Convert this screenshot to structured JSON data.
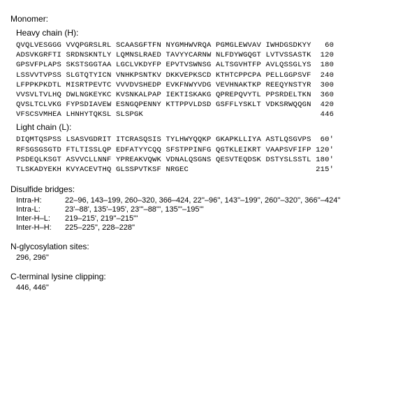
{
  "monomer_label": "Monomer:",
  "heavy_label": "Heavy chain (H):",
  "light_label": "Light chain (L):",
  "heavy_chain": {
    "font_family": "Courier New",
    "font_size_pt": 10.5,
    "groups_per_line": 6,
    "group_len": 10,
    "lines": [
      {
        "groups": [
          "QVQLVESGGG",
          "VVQPGRSLRL",
          "SCAASGFTFN",
          "NYGMHWVRQA",
          "PGMGLEWVAV",
          "IWHDGSDKYY"
        ],
        "end": "60"
      },
      {
        "groups": [
          "ADSVKGRFTI",
          "SRDNSKNTLY",
          "LQMNSLRAED",
          "TAVYYCARNW",
          "NLFDYWGQGT",
          "LVTVSSASTK"
        ],
        "end": "120"
      },
      {
        "groups": [
          "GPSVFPLAPS",
          "SKSTSGGTAA",
          "LGCLVKDYFP",
          "EPVTVSWNSG",
          "ALTSGVHTFP",
          "AVLQSSGLYS"
        ],
        "end": "180"
      },
      {
        "groups": [
          "LSSVVTVPSS",
          "SLGTQTYICN",
          "VNHKPSNTKV",
          "DKKVEPKSCD",
          "KTHTCPPCPA",
          "PELLGGPSVF"
        ],
        "end": "240"
      },
      {
        "groups": [
          "LFPPKPKDTL",
          "MISRTPEVTC",
          "VVVDVSHEDP",
          "EVKFNWYVDG",
          "VEVHNAKTKP",
          "REEQYNSTYR"
        ],
        "end": "300"
      },
      {
        "groups": [
          "VVSVLTVLHQ",
          "DWLNGKEYKC",
          "KVSNKALPAP",
          "IEKTISKAKG",
          "QPREPQVYTL",
          "PPSRDELTKN"
        ],
        "end": "360"
      },
      {
        "groups": [
          "QVSLTCLVKG",
          "FYPSDIAVEW",
          "ESNGQPENNY",
          "KTTPPVLDSD",
          "GSFFLYSKLT",
          "VDKSRWQQGN"
        ],
        "end": "420"
      },
      {
        "groups": [
          "VFSCSVMHEA",
          "LHNHYTQKSL",
          "SLSPGK",
          "",
          "",
          ""
        ],
        "end": "446"
      }
    ]
  },
  "light_chain": {
    "font_family": "Courier New",
    "font_size_pt": 10.5,
    "groups_per_line": 6,
    "group_len": 10,
    "lines": [
      {
        "groups": [
          "DIQMTQSPSS",
          "LSASVGDRIT",
          "ITCRASQSIS",
          "TYLHWYQQKP",
          "GKAPKLLIYA",
          "ASTLQSGVPS"
        ],
        "end": "60'"
      },
      {
        "groups": [
          "RFSGSGSGTD",
          "FTLTISSLQP",
          "EDFATYYCQQ",
          "SFSTPPINFG",
          "QGTKLEIKRT",
          "VAAPSVFIFP"
        ],
        "end": "120'"
      },
      {
        "groups": [
          "PSDEQLKSGT",
          "ASVVCLLNNF",
          "YPREAKVQWK",
          "VDNALQSGNS",
          "QESVTEQDSK",
          "DSTYSLSSTL"
        ],
        "end": "180'"
      },
      {
        "groups": [
          "TLSKADYEKH",
          "KVYACEVTHQ",
          "GLSSPVTKSF",
          "NRGEC",
          "",
          ""
        ],
        "end": "215'"
      }
    ]
  },
  "disulfide": {
    "title": "Disulfide bridges:",
    "rows": [
      {
        "key": "Intra-H:",
        "val": "22–96, 143–199, 260–320, 366–424, 22''–96'', 143''–199'', 260''–320'', 366''–424''"
      },
      {
        "key": "Intra-L:",
        "val": "23'–88', 135'–195', 23'''–88''', 135'''–195'''"
      },
      {
        "key": "Inter-H–L:",
        "val": "219–215', 219''–215'''"
      },
      {
        "key": "Inter-H–H:",
        "val": "225–225'', 228–228''"
      }
    ]
  },
  "nglyc": {
    "title": "N-glycosylation sites:",
    "val": "296, 296''"
  },
  "cterm": {
    "title": "C-terminal lysine clipping:",
    "val": "446, 446''"
  },
  "colors": {
    "text": "#000000",
    "background": "#ffffff"
  }
}
